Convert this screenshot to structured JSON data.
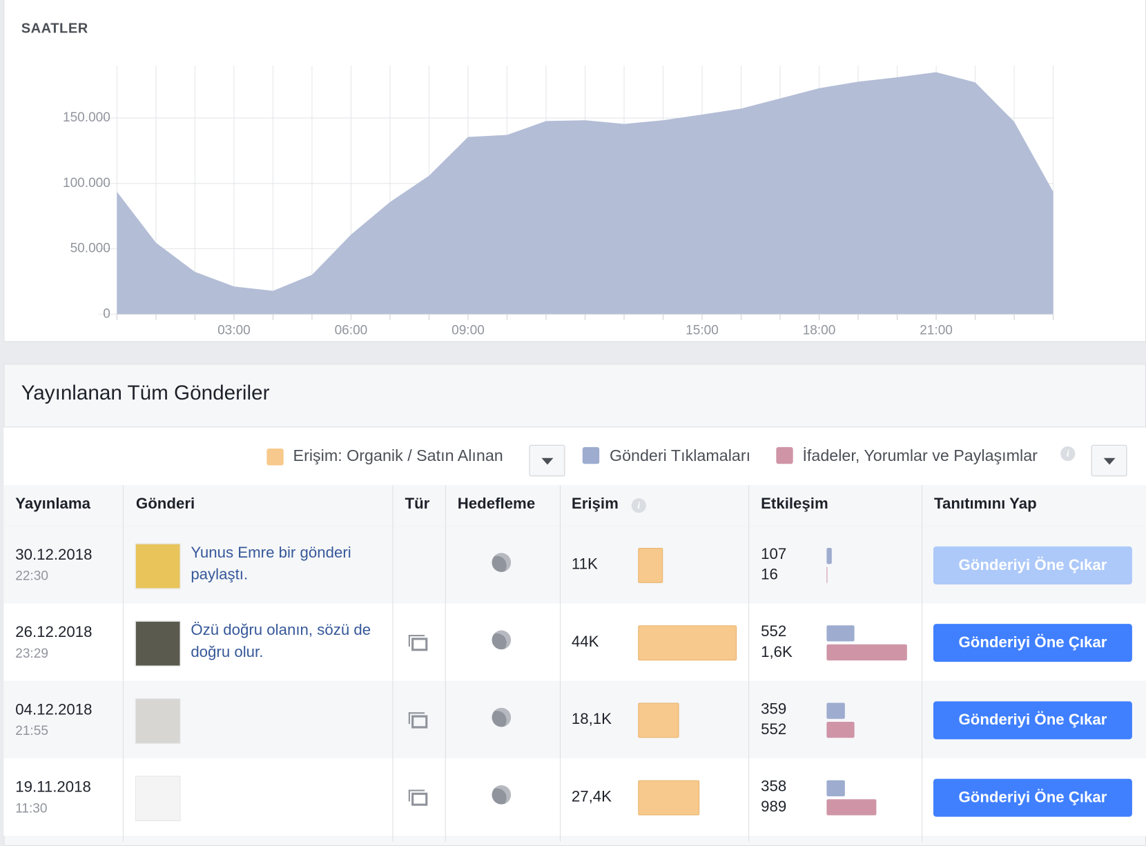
{
  "chart_data": {
    "type": "area",
    "title": "SAATLER",
    "color": "#b3bdd6",
    "grid": true,
    "x": [
      0,
      1,
      2,
      3,
      4,
      5,
      6,
      7,
      8,
      9,
      10,
      11,
      12,
      13,
      14,
      15,
      16,
      17,
      18,
      19,
      20,
      21,
      22,
      23,
      24
    ],
    "values": [
      93600,
      54600,
      32300,
      21200,
      17800,
      30100,
      60800,
      85800,
      105900,
      135500,
      137100,
      147700,
      148300,
      145500,
      148300,
      152700,
      157200,
      165000,
      172800,
      177800,
      181200,
      185100,
      177300,
      147200,
      93600
    ],
    "xlim": [
      0,
      24
    ],
    "xticks": [
      {
        "value": 3,
        "label": "03:00"
      },
      {
        "value": 6,
        "label": "06:00"
      },
      {
        "value": 9,
        "label": "09:00"
      },
      {
        "value": 15,
        "label": "15:00"
      },
      {
        "value": 18,
        "label": "18:00"
      },
      {
        "value": 21,
        "label": "21:00"
      }
    ],
    "ylim": [
      0,
      190000
    ],
    "yticks": [
      0,
      {
        "value": 50000,
        "label": "50.000"
      },
      {
        "value": 100000,
        "label": "100.000"
      },
      {
        "value": 150000,
        "label": "150.000"
      }
    ]
  },
  "posts": {
    "title": "Yayınlanan Tüm Gönderiler",
    "legend": [
      {
        "name": "Erişim: Organik / Satın Alınan",
        "color": "#f7c98c"
      },
      {
        "name": "Gönderi Tıklamaları",
        "color": "#9daccf"
      },
      {
        "name": "İfadeler, Yorumlar ve Paylaşımlar",
        "color": "#cf95a7"
      }
    ],
    "columns": [
      "Yayınlama",
      "Gönderi",
      "Tür",
      "Hedefleme",
      "Erişim",
      "Etkileşim",
      "Tanıtımını Yap"
    ],
    "button_label": "Gönderiyi Öne Çıkar",
    "rows": [
      {
        "date": "30.12.2018",
        "time": "22:30",
        "post": "Yunus Emre bir gönderi paylaştı.",
        "reach": {
          "value": 11000,
          "label": "11K"
        },
        "clicks": 107,
        "interactions": 16,
        "button_disabled": true
      },
      {
        "date": "26.12.2018",
        "time": "23:29",
        "post": "Özü doğru olanın, sözü de doğru olur.",
        "album": true,
        "reach": {
          "value": 44000,
          "label": "44K"
        },
        "clicks": 552,
        "interactions": {
          "value": 1600,
          "label": "1,6K"
        },
        "button_disabled": false
      },
      {
        "date": "04.12.2018",
        "time": "21:55",
        "album": true,
        "reach": {
          "value": 18100,
          "label": "18,1K"
        },
        "clicks": 359,
        "interactions": 552,
        "button_disabled": false
      },
      {
        "date": "19.11.2018",
        "time": "11:30",
        "album": true,
        "reach": {
          "value": 27400,
          "label": "27,4K"
        },
        "clicks": 358,
        "interactions": 989,
        "button_disabled": false
      }
    ]
  }
}
